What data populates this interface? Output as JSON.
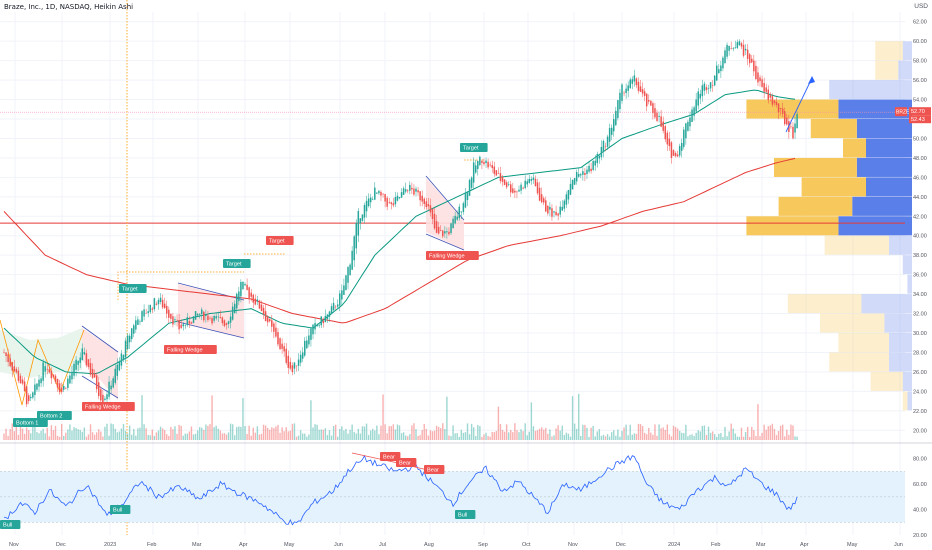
{
  "header": {
    "symbol_line": "Braze, Inc., 1D, NASDAQ, Heikin Ashi",
    "currency": "USD"
  },
  "colors": {
    "up": "#26a69a",
    "down": "#ef5350",
    "ema_fast": "#089981",
    "ema_slow": "#e53935",
    "vp_up": "#5b7fe8",
    "vp_down": "#f7c95c",
    "rsi": "#2962ff",
    "rsi_band": "#e3f2fd"
  },
  "price_scale": {
    "ticks": [
      "62.00",
      "60.00",
      "58.00",
      "56.00",
      "54.00",
      "52.00",
      "50.00",
      "48.00",
      "46.00",
      "44.00",
      "42.00",
      "40.00",
      "38.00",
      "36.00",
      "34.00",
      "32.00",
      "30.00",
      "28.00",
      "26.00",
      "24.00",
      "22.00",
      "20.00"
    ],
    "current_price": "52.70",
    "current_price_2": "52.43",
    "symbol_tag": "BRZE"
  },
  "rsi_scale": {
    "ticks": [
      "80.00",
      "60.00",
      "40.00",
      "20.00"
    ]
  },
  "time_axis": {
    "labels": [
      "Nov",
      "Dec",
      "2023",
      "Feb",
      "Mar",
      "Apr",
      "May",
      "Jun",
      "Jul",
      "Aug",
      "Sep",
      "Oct",
      "Nov",
      "Dec",
      "2024",
      "Feb",
      "Mar",
      "Apr",
      "May",
      "Jun"
    ]
  },
  "annotations": {
    "bottom1": "Bottom 1",
    "bottom2": "Bottom 2",
    "falling_wedge_1": "Falling Wedge",
    "falling_wedge_2": "Falling Wedge",
    "falling_wedge_3": "Falling Wedge",
    "target_1": "Target",
    "target_2": "Target",
    "target_3": "Target",
    "target_4": "Target",
    "bear_1": "Bear",
    "bear_2": "Bear",
    "bear_3": "Bear",
    "bull_1": "Bull",
    "bull_2": "Bull",
    "bull_3": "Bull"
  },
  "chart_data": {
    "type": "candlestick",
    "x_labels": [
      "Nov",
      "Dec",
      "2023",
      "Feb",
      "Mar",
      "Apr",
      "May",
      "Jun",
      "Jul",
      "Aug",
      "Sep",
      "Oct",
      "Nov",
      "Dec",
      "2024",
      "Feb",
      "Mar",
      "Apr",
      "May",
      "Jun"
    ],
    "price_keypoints": [
      [
        0,
        28
      ],
      [
        8,
        25
      ],
      [
        12,
        22.5
      ],
      [
        20,
        27
      ],
      [
        28,
        24
      ],
      [
        38,
        28
      ],
      [
        48,
        23
      ],
      [
        55,
        26.5
      ],
      [
        63,
        31
      ],
      [
        75,
        33.5
      ],
      [
        85,
        30.5
      ],
      [
        95,
        32
      ],
      [
        108,
        31
      ],
      [
        115,
        35
      ],
      [
        125,
        32.5
      ],
      [
        133,
        29
      ],
      [
        140,
        26
      ],
      [
        148,
        30
      ],
      [
        158,
        32
      ],
      [
        164,
        34
      ],
      [
        168,
        37.5
      ],
      [
        172,
        42
      ],
      [
        180,
        44.5
      ],
      [
        188,
        43
      ],
      [
        196,
        45
      ],
      [
        205,
        43.5
      ],
      [
        210,
        40
      ],
      [
        216,
        40.5
      ],
      [
        222,
        43
      ],
      [
        228,
        47
      ],
      [
        232,
        48
      ],
      [
        240,
        46
      ],
      [
        248,
        44.5
      ],
      [
        256,
        46
      ],
      [
        262,
        43
      ],
      [
        268,
        42
      ],
      [
        276,
        46
      ],
      [
        285,
        47
      ],
      [
        293,
        50
      ],
      [
        300,
        55
      ],
      [
        306,
        56
      ],
      [
        312,
        53.5
      ],
      [
        318,
        52
      ],
      [
        322,
        49
      ],
      [
        326,
        48
      ],
      [
        332,
        52
      ],
      [
        338,
        55
      ],
      [
        344,
        56
      ],
      [
        350,
        59
      ],
      [
        356,
        60
      ],
      [
        362,
        58
      ],
      [
        368,
        55
      ],
      [
        374,
        53.5
      ],
      [
        380,
        51.5
      ],
      [
        383,
        50.5
      ],
      [
        385,
        52.7
      ]
    ],
    "ema_fast_keypoints": [
      [
        0,
        30.5
      ],
      [
        15,
        27.5
      ],
      [
        30,
        26
      ],
      [
        45,
        25.8
      ],
      [
        60,
        27.5
      ],
      [
        80,
        31
      ],
      [
        100,
        32
      ],
      [
        120,
        32.5
      ],
      [
        135,
        31
      ],
      [
        150,
        30.5
      ],
      [
        165,
        33
      ],
      [
        180,
        38
      ],
      [
        200,
        42
      ],
      [
        220,
        44
      ],
      [
        240,
        46
      ],
      [
        260,
        46.5
      ],
      [
        280,
        47
      ],
      [
        300,
        50
      ],
      [
        320,
        51.5
      ],
      [
        335,
        52.5
      ],
      [
        350,
        54.5
      ],
      [
        365,
        55
      ],
      [
        375,
        54.3
      ],
      [
        385,
        54
      ]
    ],
    "ema_slow_keypoints": [
      [
        0,
        42.5
      ],
      [
        20,
        38
      ],
      [
        40,
        36
      ],
      [
        60,
        35
      ],
      [
        80,
        34.5
      ],
      [
        100,
        34
      ],
      [
        120,
        33.5
      ],
      [
        140,
        32
      ],
      [
        165,
        31
      ],
      [
        185,
        32.5
      ],
      [
        205,
        35
      ],
      [
        225,
        37.5
      ],
      [
        245,
        39
      ],
      [
        270,
        40
      ],
      [
        290,
        41
      ],
      [
        310,
        42.5
      ],
      [
        330,
        43.5
      ],
      [
        345,
        45
      ],
      [
        360,
        46.5
      ],
      [
        375,
        47.5
      ],
      [
        385,
        48
      ]
    ],
    "horizontal_line": 41.3,
    "volume_profile": [
      {
        "price": 59,
        "up": 2,
        "down": 6
      },
      {
        "price": 57,
        "up": 3,
        "down": 5
      },
      {
        "price": 55,
        "up": 18,
        "down": 0
      },
      {
        "price": 53,
        "up": 16,
        "down": 20
      },
      {
        "price": 51,
        "up": 12,
        "down": 10
      },
      {
        "price": 49,
        "up": 10,
        "down": 5
      },
      {
        "price": 47,
        "up": 12,
        "down": 18
      },
      {
        "price": 45,
        "up": 10,
        "down": 14
      },
      {
        "price": 43,
        "up": 13,
        "down": 16
      },
      {
        "price": 41,
        "up": 16,
        "down": 20
      },
      {
        "price": 39,
        "up": 5,
        "down": 14
      },
      {
        "price": 37,
        "up": 2,
        "down": 0
      },
      {
        "price": 35,
        "up": 1,
        "down": 0
      },
      {
        "price": 33,
        "up": 11,
        "down": 16
      },
      {
        "price": 31,
        "up": 6,
        "down": 14
      },
      {
        "price": 29,
        "up": 5,
        "down": 11
      },
      {
        "price": 27,
        "up": 5,
        "down": 13
      },
      {
        "price": 25,
        "up": 2,
        "down": 7
      },
      {
        "price": 23,
        "up": 1,
        "down": 1
      }
    ],
    "rsi_keypoints": [
      [
        0,
        32
      ],
      [
        8,
        45
      ],
      [
        15,
        38
      ],
      [
        22,
        55
      ],
      [
        30,
        42
      ],
      [
        40,
        60
      ],
      [
        50,
        35
      ],
      [
        58,
        45
      ],
      [
        66,
        62
      ],
      [
        75,
        50
      ],
      [
        85,
        58
      ],
      [
        95,
        48
      ],
      [
        105,
        60
      ],
      [
        115,
        52
      ],
      [
        125,
        45
      ],
      [
        135,
        32
      ],
      [
        142,
        28
      ],
      [
        150,
        45
      ],
      [
        160,
        55
      ],
      [
        168,
        72
      ],
      [
        175,
        80
      ],
      [
        182,
        75
      ],
      [
        190,
        70
      ],
      [
        200,
        74
      ],
      [
        210,
        58
      ],
      [
        218,
        45
      ],
      [
        226,
        62
      ],
      [
        234,
        72
      ],
      [
        242,
        55
      ],
      [
        250,
        62
      ],
      [
        258,
        48
      ],
      [
        264,
        38
      ],
      [
        272,
        60
      ],
      [
        280,
        55
      ],
      [
        290,
        68
      ],
      [
        300,
        78
      ],
      [
        306,
        82
      ],
      [
        312,
        60
      ],
      [
        320,
        45
      ],
      [
        328,
        40
      ],
      [
        336,
        55
      ],
      [
        345,
        65
      ],
      [
        352,
        58
      ],
      [
        360,
        72
      ],
      [
        368,
        60
      ],
      [
        375,
        52
      ],
      [
        381,
        40
      ],
      [
        385,
        48
      ]
    ],
    "rsi_ylim": [
      20,
      90
    ],
    "ylim": [
      19,
      63
    ]
  }
}
